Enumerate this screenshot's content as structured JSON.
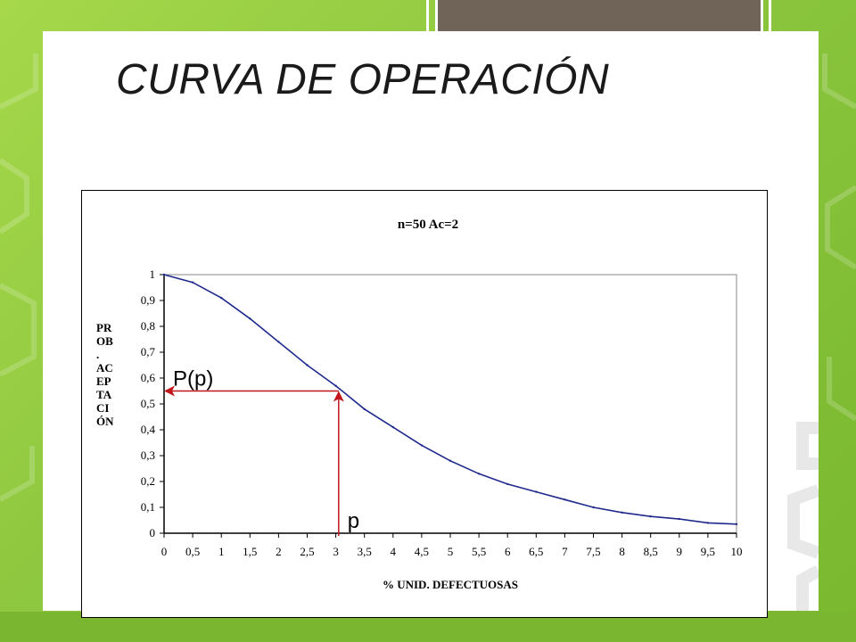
{
  "slide": {
    "title": "CURVA DE OPERACIÓN"
  },
  "colors": {
    "background": "#8cc63f",
    "top_box": "#6f6457",
    "curve": "#1f2a8c",
    "arrow": "#c0161c"
  },
  "chart_data": {
    "type": "line",
    "title": "n=50 Ac=2",
    "xlabel": "% UNID. DEFECTUOSAS",
    "ylabel": "PR\nOB\n.\nAC\nEP\nTA\nCI\nÓN",
    "xlim": [
      0,
      10
    ],
    "ylim": [
      0,
      1
    ],
    "x_ticks": [
      "0",
      "0,5",
      "1",
      "1,5",
      "2",
      "2,5",
      "3",
      "3,5",
      "4",
      "4,5",
      "5",
      "5,5",
      "6",
      "6,5",
      "7",
      "7,5",
      "8",
      "8,5",
      "9",
      "9,5",
      "10"
    ],
    "y_ticks": [
      "0",
      "0,1",
      "0,2",
      "0,3",
      "0,4",
      "0,5",
      "0,6",
      "0,7",
      "0,8",
      "0,9",
      "1"
    ],
    "series": [
      {
        "x": [
          0,
          0.5,
          1,
          1.5,
          2,
          2.5,
          3,
          3.5,
          4,
          4.5,
          5,
          5.5,
          6,
          6.5,
          7,
          7.5,
          8,
          8.5,
          9,
          9.5,
          10
        ],
        "y": [
          1.0,
          0.97,
          0.91,
          0.83,
          0.74,
          0.65,
          0.57,
          0.48,
          0.41,
          0.34,
          0.28,
          0.23,
          0.19,
          0.16,
          0.13,
          0.1,
          0.08,
          0.065,
          0.055,
          0.04,
          0.035
        ]
      }
    ],
    "grid": false,
    "annotations": [
      {
        "text": "P(p)",
        "target_y": 0.55
      },
      {
        "text": "p",
        "target_x": 3.05
      }
    ]
  }
}
